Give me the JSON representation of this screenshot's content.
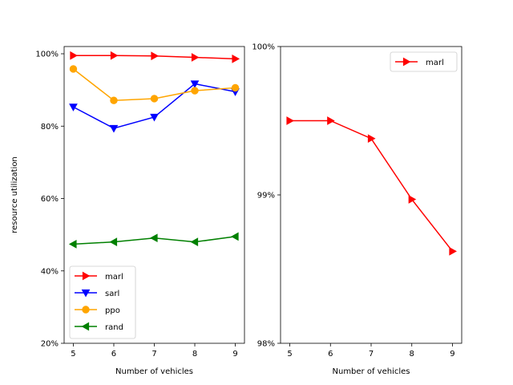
{
  "chart_data": [
    {
      "type": "line",
      "title": "",
      "xlabel": "Number of vehicles",
      "ylabel": "resource utilization",
      "x": [
        5,
        6,
        7,
        8,
        9
      ],
      "xticks": [
        "5",
        "6",
        "7",
        "8",
        "9"
      ],
      "ylim": [
        20,
        102
      ],
      "yticks": [
        {
          "value": 20,
          "label": "20%"
        },
        {
          "value": 40,
          "label": "40%"
        },
        {
          "value": 60,
          "label": "60%"
        },
        {
          "value": 80,
          "label": "80%"
        },
        {
          "value": 100,
          "label": "100%"
        }
      ],
      "grid": false,
      "legend_position": "lower-left",
      "series": [
        {
          "name": "marl",
          "color": "#ff0000",
          "marker": "triangle-right",
          "values": [
            99.5,
            99.5,
            99.4,
            99.0,
            98.6
          ]
        },
        {
          "name": "sarl",
          "color": "#0000ff",
          "marker": "triangle-down",
          "values": [
            85.3,
            79.4,
            82.5,
            91.7,
            89.5
          ]
        },
        {
          "name": "ppo",
          "color": "#ffa500",
          "marker": "circle",
          "values": [
            95.8,
            87.1,
            87.6,
            89.8,
            90.6
          ]
        },
        {
          "name": "rand",
          "color": "#008000",
          "marker": "triangle-left",
          "values": [
            47.4,
            48.0,
            49.1,
            48.0,
            49.5
          ]
        }
      ]
    },
    {
      "type": "line",
      "title": "",
      "xlabel": "Number of vehicles",
      "ylabel": "",
      "x": [
        5,
        6,
        7,
        8,
        9
      ],
      "xticks": [
        "5",
        "6",
        "7",
        "8",
        "9"
      ],
      "ylim": [
        98,
        100
      ],
      "yticks": [
        {
          "value": 98,
          "label": "98%"
        },
        {
          "value": 99,
          "label": "99%"
        },
        {
          "value": 100,
          "label": "100%"
        }
      ],
      "grid": false,
      "legend_position": "top-right",
      "series": [
        {
          "name": "marl",
          "color": "#ff0000",
          "marker": "triangle-right",
          "values": [
            99.5,
            99.5,
            99.38,
            98.97,
            98.62
          ]
        }
      ]
    }
  ]
}
